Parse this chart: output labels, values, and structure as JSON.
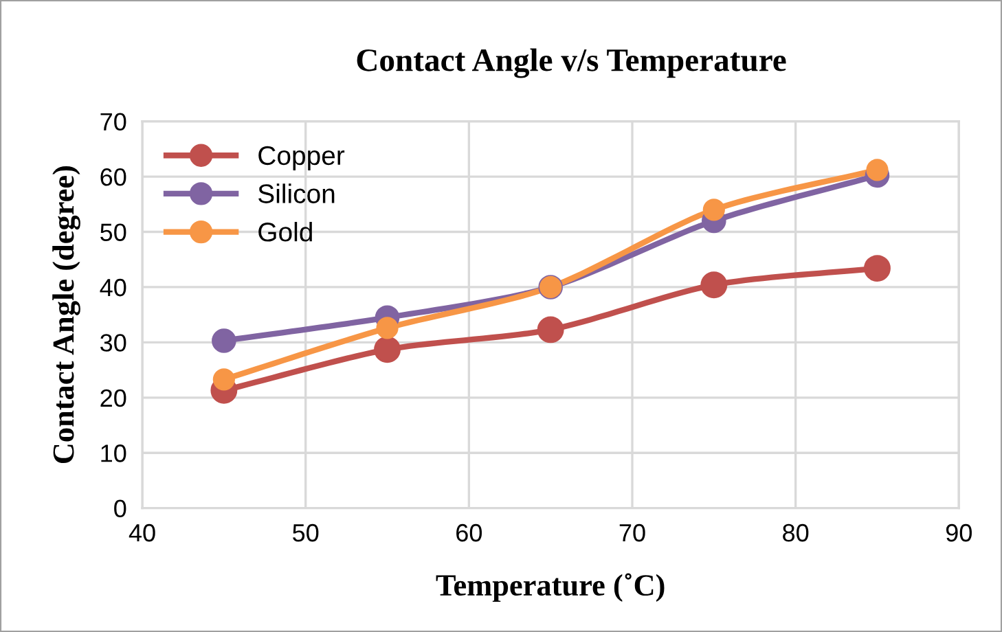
{
  "chart_data": {
    "type": "line",
    "title": "Contact Angle v/s Temperature",
    "xlabel": "Temperature (˚C)",
    "ylabel": "Contact Angle (degree)",
    "x": [
      45,
      55,
      65,
      75,
      85
    ],
    "series": [
      {
        "name": "Copper",
        "color": "#c0504d",
        "values": [
          21.3,
          28.7,
          32.3,
          40.4,
          43.4
        ]
      },
      {
        "name": "Silicon",
        "color": "#8064a2",
        "values": [
          30.3,
          34.5,
          40,
          52,
          60.2
        ]
      },
      {
        "name": "Gold",
        "color": "#f79646",
        "values": [
          23.3,
          32.6,
          40,
          54,
          61.2
        ]
      }
    ],
    "xlim": [
      40,
      90
    ],
    "xticks": [
      40,
      50,
      60,
      70,
      80,
      90
    ],
    "ylim": [
      0,
      70
    ],
    "yticks": [
      0,
      10,
      20,
      30,
      40,
      50,
      60,
      70
    ],
    "grid": true,
    "legend": "top left",
    "marker": "circle",
    "line_style": "solid"
  }
}
